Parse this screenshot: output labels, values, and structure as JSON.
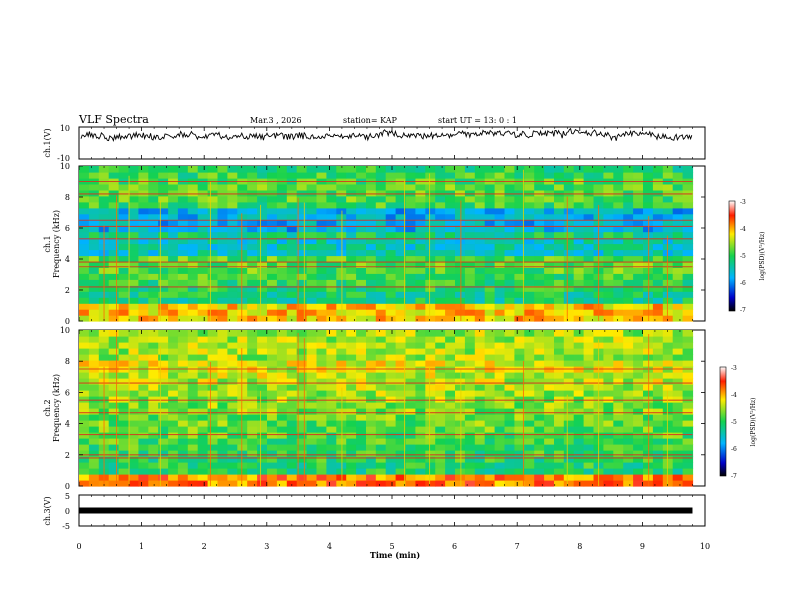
{
  "header": {
    "title": "VLF Spectra",
    "date": "Mar.3  , 2026",
    "station": "station= KAP",
    "start_ut": "start  UT  =   13: 0  : 1"
  },
  "chart_data": [
    {
      "type": "line",
      "name": "ch1-waveform",
      "ylabel": "ch.1(V)",
      "ylim": [
        -10,
        10
      ],
      "yticks": [
        "10",
        "-10"
      ],
      "xlim": [
        0,
        10
      ],
      "baseline": 5,
      "amplitude": 4
    },
    {
      "type": "heatmap",
      "name": "ch1-spectrogram",
      "ylabel": "ch.1\nFrequency  (kHz)",
      "ylim": [
        0,
        10
      ],
      "yticks": [
        "0",
        "2",
        "4",
        "6",
        "8",
        "10"
      ],
      "xlim": [
        0,
        9.8
      ],
      "colorbar": {
        "label": "log(PSD)(V²/Hz)",
        "ticks": [
          "-3",
          "-4",
          "-5",
          "-6",
          "-7"
        ],
        "range": [
          -7,
          -3
        ]
      },
      "strong_lines_khz": [
        2.2,
        3.5,
        3.8,
        5.3,
        6.1,
        6.5,
        8.2,
        9.0
      ],
      "impulse_times_min": [
        0.4,
        0.6,
        0.8,
        1.3,
        2.1,
        2.6,
        2.9,
        3.5,
        3.6,
        4.2,
        5.2,
        5.6,
        6.1,
        7.1,
        7.8,
        8.3,
        9.1,
        9.4
      ]
    },
    {
      "type": "heatmap",
      "name": "ch2-spectrogram",
      "ylabel": "ch.2\nFrequency  (kHz)",
      "ylim": [
        0,
        10
      ],
      "yticks": [
        "0",
        "2",
        "4",
        "6",
        "8",
        "10"
      ],
      "xlim": [
        0,
        9.8
      ],
      "colorbar": {
        "label": "log(PSD)(V²/Hz)",
        "ticks": [
          "-3",
          "-4",
          "-5",
          "-6",
          "-7"
        ],
        "range": [
          -7,
          -3
        ]
      },
      "strong_lines_khz": [
        1.8,
        2.0,
        3.3,
        4.7,
        5.5,
        6.6,
        7.5
      ],
      "impulse_times_min": [
        0.4,
        0.6,
        0.8,
        1.3,
        2.1,
        2.6,
        2.9,
        3.5,
        3.6,
        4.2,
        5.2,
        5.6,
        6.1,
        7.1,
        7.8,
        8.3,
        9.1,
        9.4
      ]
    },
    {
      "type": "line",
      "name": "ch3-level",
      "ylabel": "ch.3(V)",
      "ylim": [
        -5,
        5
      ],
      "yticks": [
        "5",
        "0",
        "-5"
      ],
      "xlim": [
        0,
        9.8
      ],
      "level": 0
    }
  ],
  "xaxis": {
    "label": "Time  (min)",
    "range": [
      0,
      10
    ],
    "ticks": [
      "0",
      "1",
      "2",
      "3",
      "4",
      "5",
      "6",
      "7",
      "8",
      "9",
      "10"
    ]
  }
}
